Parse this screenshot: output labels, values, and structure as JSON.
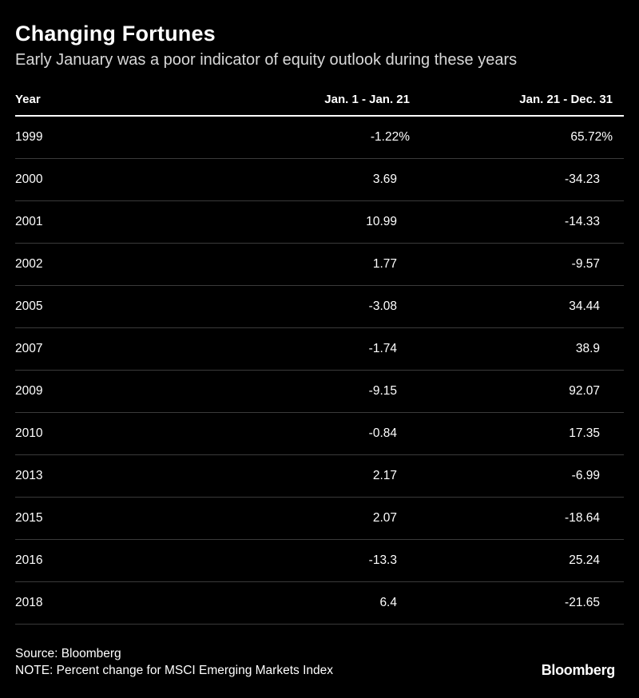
{
  "title": "Changing Fortunes",
  "subtitle": "Early January was a poor indicator of equity outlook during these years",
  "table": {
    "headers": [
      "Year",
      "Jan. 1 - Jan. 21",
      "Jan. 21 - Dec. 31"
    ],
    "rows": [
      [
        "1999",
        "-1.22%",
        "65.72%"
      ],
      [
        "2000",
        "3.69",
        "-34.23"
      ],
      [
        "2001",
        "10.99",
        "-14.33"
      ],
      [
        "2002",
        "1.77",
        "-9.57"
      ],
      [
        "2005",
        "-3.08",
        "34.44"
      ],
      [
        "2007",
        "-1.74",
        "38.9"
      ],
      [
        "2009",
        "-9.15",
        "92.07"
      ],
      [
        "2010",
        "-0.84",
        "17.35"
      ],
      [
        "2013",
        "2.17",
        "-6.99"
      ],
      [
        "2015",
        "2.07",
        "-18.64"
      ],
      [
        "2016",
        "-13.3",
        "25.24"
      ],
      [
        "2018",
        "6.4",
        "-21.65"
      ]
    ]
  },
  "source": "Source: Bloomberg",
  "note": "NOTE: Percent change for MSCI Emerging Markets Index",
  "logo": "Bloomberg",
  "colors": {
    "background": "#000000",
    "text": "#ffffff",
    "rule": "#3a3a3a"
  },
  "chart_data": {
    "type": "table",
    "title": "Changing Fortunes",
    "subtitle": "Early January was a poor indicator of equity outlook during these years",
    "columns": [
      "Year",
      "Jan. 1 - Jan. 21",
      "Jan. 21 - Dec. 31"
    ],
    "x": [
      1999,
      2000,
      2001,
      2002,
      2005,
      2007,
      2009,
      2010,
      2013,
      2015,
      2016,
      2018
    ],
    "series": [
      {
        "name": "Jan. 1 - Jan. 21",
        "values": [
          -1.22,
          3.69,
          10.99,
          1.77,
          -3.08,
          -1.74,
          -9.15,
          -0.84,
          2.17,
          2.07,
          -13.3,
          6.4
        ]
      },
      {
        "name": "Jan. 21 - Dec. 31",
        "values": [
          65.72,
          -34.23,
          -14.33,
          -9.57,
          34.44,
          38.9,
          92.07,
          17.35,
          -6.99,
          -18.64,
          25.24,
          -21.65
        ]
      }
    ],
    "unit": "%"
  }
}
